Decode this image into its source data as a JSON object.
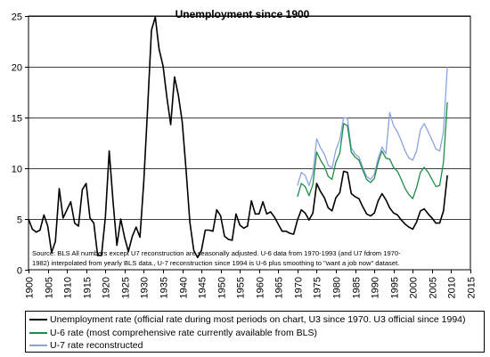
{
  "chart_data": {
    "type": "line",
    "title": "Unemployment since 1900",
    "xlabel": "",
    "ylabel": "",
    "xlim": [
      1900,
      2015
    ],
    "ylim": [
      0,
      25
    ],
    "x_ticks": [
      1900,
      1905,
      1910,
      1915,
      1920,
      1925,
      1930,
      1935,
      1940,
      1945,
      1950,
      1955,
      1960,
      1965,
      1970,
      1975,
      1980,
      1985,
      1990,
      1995,
      2000,
      2005,
      2010,
      2015
    ],
    "y_ticks": [
      0,
      5,
      10,
      15,
      20,
      25
    ],
    "grid": "horizontal",
    "legend_placement": "bottom",
    "annotation": "Source: BLS   All numbers  except U7 reconstruction are seasonally adjusted.  U-6 data from 1970-1993 (and U7 fdrom 1970-1982) interpolated from yearly BLS data., U-7 reconstruction since 1994 is U-6 plus smoothing to \"want a job now\" dataset.",
    "series": [
      {
        "name": "Unemployment rate (official rate during most periods on chart, U3 since 1970. U3 official since 1994)",
        "color": "#000000",
        "points": [
          [
            1900,
            5.0
          ],
          [
            1901,
            4.0
          ],
          [
            1902,
            3.7
          ],
          [
            1903,
            3.9
          ],
          [
            1904,
            5.4
          ],
          [
            1905,
            4.3
          ],
          [
            1906,
            1.7
          ],
          [
            1907,
            2.8
          ],
          [
            1908,
            8.0
          ],
          [
            1909,
            5.1
          ],
          [
            1910,
            5.9
          ],
          [
            1911,
            6.7
          ],
          [
            1912,
            4.6
          ],
          [
            1913,
            4.3
          ],
          [
            1914,
            7.9
          ],
          [
            1915,
            8.5
          ],
          [
            1916,
            5.1
          ],
          [
            1917,
            4.6
          ],
          [
            1918,
            1.4
          ],
          [
            1919,
            1.4
          ],
          [
            1920,
            5.2
          ],
          [
            1921,
            11.7
          ],
          [
            1922,
            6.7
          ],
          [
            1923,
            2.4
          ],
          [
            1924,
            5.0
          ],
          [
            1925,
            3.2
          ],
          [
            1926,
            1.8
          ],
          [
            1927,
            3.3
          ],
          [
            1928,
            4.2
          ],
          [
            1929,
            3.2
          ],
          [
            1930,
            8.7
          ],
          [
            1931,
            15.9
          ],
          [
            1932,
            23.6
          ],
          [
            1933,
            24.9
          ],
          [
            1934,
            21.7
          ],
          [
            1935,
            20.1
          ],
          [
            1936,
            17.0
          ],
          [
            1937,
            14.3
          ],
          [
            1938,
            19.0
          ],
          [
            1939,
            17.2
          ],
          [
            1940,
            14.6
          ],
          [
            1941,
            9.9
          ],
          [
            1942,
            4.7
          ],
          [
            1943,
            1.9
          ],
          [
            1944,
            1.2
          ],
          [
            1945,
            1.9
          ],
          [
            1946,
            3.9
          ],
          [
            1947,
            3.9
          ],
          [
            1948,
            3.8
          ],
          [
            1949,
            5.9
          ],
          [
            1950,
            5.3
          ],
          [
            1951,
            3.3
          ],
          [
            1952,
            3.0
          ],
          [
            1953,
            2.9
          ],
          [
            1954,
            5.5
          ],
          [
            1955,
            4.4
          ],
          [
            1956,
            4.1
          ],
          [
            1957,
            4.3
          ],
          [
            1958,
            6.8
          ],
          [
            1959,
            5.5
          ],
          [
            1960,
            5.5
          ],
          [
            1961,
            6.7
          ],
          [
            1962,
            5.5
          ],
          [
            1963,
            5.7
          ],
          [
            1964,
            5.2
          ],
          [
            1965,
            4.5
          ],
          [
            1966,
            3.8
          ],
          [
            1967,
            3.8
          ],
          [
            1968,
            3.6
          ],
          [
            1969,
            3.5
          ],
          [
            1970,
            4.9
          ],
          [
            1971,
            5.9
          ],
          [
            1972,
            5.6
          ],
          [
            1973,
            4.9
          ],
          [
            1974,
            5.6
          ],
          [
            1975,
            8.5
          ],
          [
            1976,
            7.7
          ],
          [
            1977,
            7.1
          ],
          [
            1978,
            6.1
          ],
          [
            1979,
            5.8
          ],
          [
            1980,
            7.1
          ],
          [
            1981,
            7.6
          ],
          [
            1982,
            9.7
          ],
          [
            1983,
            9.6
          ],
          [
            1984,
            7.5
          ],
          [
            1985,
            7.2
          ],
          [
            1986,
            7.0
          ],
          [
            1987,
            6.2
          ],
          [
            1988,
            5.5
          ],
          [
            1989,
            5.3
          ],
          [
            1990,
            5.6
          ],
          [
            1991,
            6.8
          ],
          [
            1992,
            7.5
          ],
          [
            1993,
            6.9
          ],
          [
            1994,
            6.1
          ],
          [
            1995,
            5.6
          ],
          [
            1996,
            5.4
          ],
          [
            1997,
            4.9
          ],
          [
            1998,
            4.5
          ],
          [
            1999,
            4.2
          ],
          [
            2000,
            4.0
          ],
          [
            2001,
            4.7
          ],
          [
            2002,
            5.8
          ],
          [
            2003,
            6.0
          ],
          [
            2004,
            5.5
          ],
          [
            2005,
            5.1
          ],
          [
            2006,
            4.6
          ],
          [
            2007,
            4.6
          ],
          [
            2008,
            5.8
          ],
          [
            2009,
            9.3
          ]
        ]
      },
      {
        "name": "U-6 rate (most comprehensive rate currently available from BLS)",
        "color": "#1e8c46",
        "points": [
          [
            1970,
            7.2
          ],
          [
            1971,
            8.5
          ],
          [
            1972,
            8.2
          ],
          [
            1973,
            7.3
          ],
          [
            1974,
            8.4
          ],
          [
            1975,
            11.6
          ],
          [
            1976,
            10.8
          ],
          [
            1977,
            10.2
          ],
          [
            1978,
            9.2
          ],
          [
            1979,
            8.9
          ],
          [
            1980,
            10.6
          ],
          [
            1981,
            11.5
          ],
          [
            1982,
            14.4
          ],
          [
            1983,
            14.2
          ],
          [
            1984,
            11.6
          ],
          [
            1985,
            11.1
          ],
          [
            1986,
            10.8
          ],
          [
            1987,
            9.8
          ],
          [
            1988,
            8.9
          ],
          [
            1989,
            8.6
          ],
          [
            1990,
            9.0
          ],
          [
            1991,
            10.6
          ],
          [
            1992,
            11.7
          ],
          [
            1993,
            11.0
          ],
          [
            1994,
            10.9
          ],
          [
            1995,
            10.1
          ],
          [
            1996,
            9.7
          ],
          [
            1997,
            8.9
          ],
          [
            1998,
            8.0
          ],
          [
            1999,
            7.4
          ],
          [
            2000,
            7.0
          ],
          [
            2001,
            8.1
          ],
          [
            2002,
            9.6
          ],
          [
            2003,
            10.1
          ],
          [
            2004,
            9.6
          ],
          [
            2005,
            8.9
          ],
          [
            2006,
            8.2
          ],
          [
            2007,
            8.3
          ],
          [
            2008,
            10.6
          ],
          [
            2009,
            16.5
          ]
        ]
      },
      {
        "name": "U-7 rate reconstructed",
        "color": "#8aa3e0",
        "points": [
          [
            1970,
            8.3
          ],
          [
            1971,
            9.6
          ],
          [
            1972,
            9.3
          ],
          [
            1973,
            8.3
          ],
          [
            1974,
            9.5
          ],
          [
            1975,
            12.9
          ],
          [
            1976,
            12.0
          ],
          [
            1977,
            11.4
          ],
          [
            1978,
            10.3
          ],
          [
            1979,
            10.0
          ],
          [
            1980,
            11.8
          ],
          [
            1981,
            12.8
          ],
          [
            1982,
            15.0
          ],
          [
            1983,
            14.9
          ],
          [
            1984,
            12.0
          ],
          [
            1985,
            11.4
          ],
          [
            1986,
            11.1
          ],
          [
            1987,
            10.1
          ],
          [
            1988,
            9.2
          ],
          [
            1989,
            8.9
          ],
          [
            1990,
            9.4
          ],
          [
            1991,
            11.0
          ],
          [
            1992,
            12.1
          ],
          [
            1993,
            11.4
          ],
          [
            1994,
            15.5
          ],
          [
            1995,
            14.2
          ],
          [
            1996,
            13.6
          ],
          [
            1997,
            12.7
          ],
          [
            1998,
            11.7
          ],
          [
            1999,
            11.0
          ],
          [
            2000,
            10.8
          ],
          [
            2001,
            11.7
          ],
          [
            2002,
            13.8
          ],
          [
            2003,
            14.4
          ],
          [
            2004,
            13.6
          ],
          [
            2005,
            12.8
          ],
          [
            2006,
            11.9
          ],
          [
            2007,
            11.7
          ],
          [
            2008,
            13.6
          ],
          [
            2009,
            20.0
          ]
        ]
      }
    ]
  }
}
